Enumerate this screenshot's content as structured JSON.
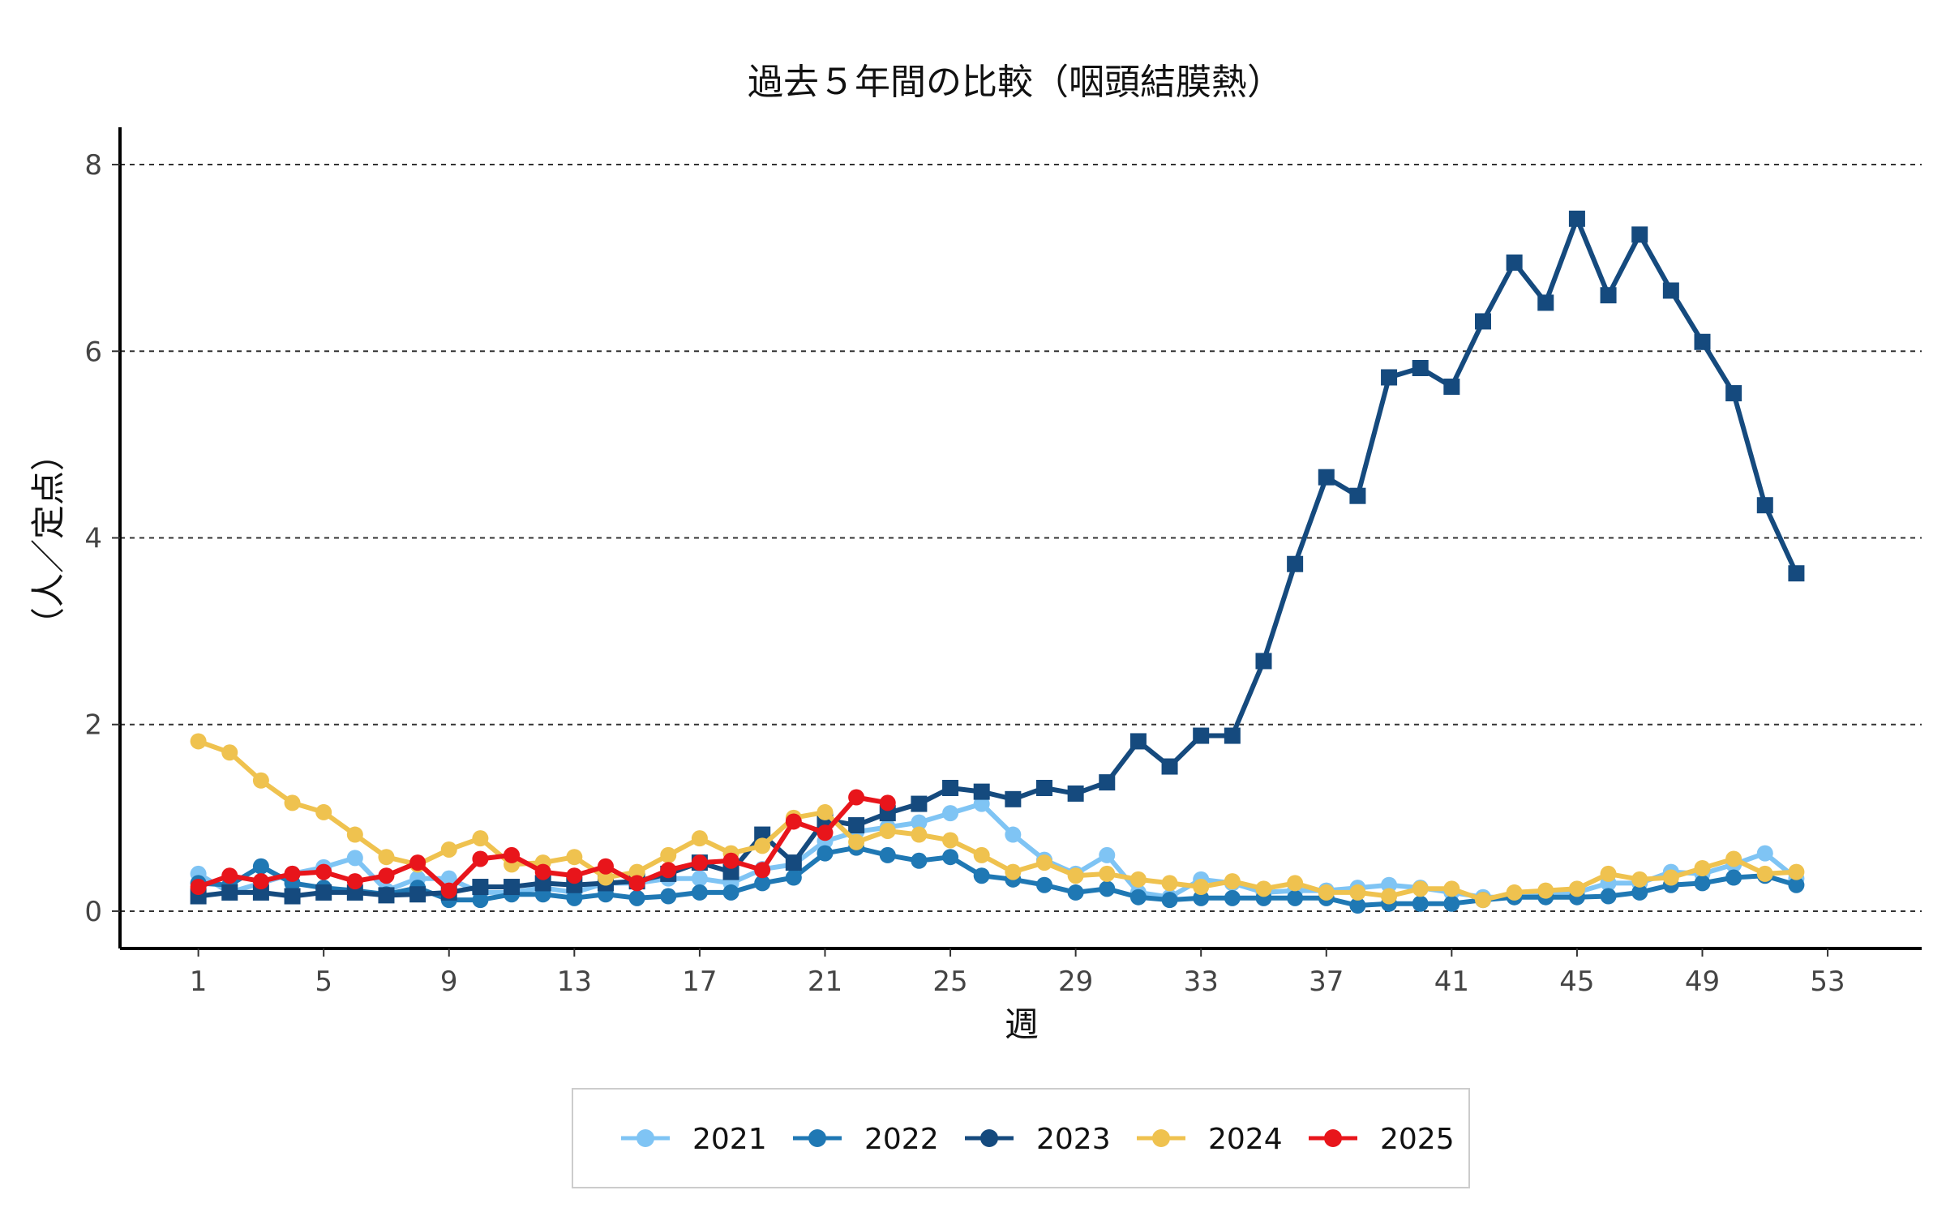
{
  "chart_data": {
    "type": "line",
    "title": "過去５年間の比較（咽頭結膜熱）",
    "xlabel": "週",
    "ylabel": "（人／定点）",
    "xlim": [
      -1.5,
      56
    ],
    "ylim": [
      -0.4,
      8.4
    ],
    "xticks": [
      1,
      5,
      9,
      13,
      17,
      21,
      25,
      29,
      33,
      37,
      41,
      45,
      49,
      53
    ],
    "yticks": [
      0,
      2,
      4,
      6,
      8
    ],
    "grid": "horizontal dashed",
    "legend_position": "bottom",
    "series": [
      {
        "name": "2021",
        "color": "#7fc4f4",
        "marker": "circle",
        "x": [
          1,
          2,
          3,
          4,
          5,
          6,
          7,
          8,
          9,
          10,
          11,
          12,
          13,
          14,
          15,
          16,
          17,
          18,
          19,
          20,
          21,
          22,
          23,
          24,
          25,
          26,
          27,
          28,
          29,
          30,
          31,
          32,
          33,
          34,
          35,
          36,
          37,
          38,
          39,
          40,
          41,
          42,
          43,
          44,
          45,
          46,
          47,
          48,
          49,
          50,
          51,
          52
        ],
        "values": [
          0.4,
          0.2,
          0.3,
          0.4,
          0.47,
          0.57,
          0.22,
          0.35,
          0.35,
          0.2,
          0.2,
          0.25,
          0.2,
          0.3,
          0.3,
          0.35,
          0.35,
          0.3,
          0.45,
          0.5,
          0.75,
          0.85,
          0.9,
          0.95,
          1.05,
          1.15,
          0.82,
          0.55,
          0.4,
          0.6,
          0.2,
          0.15,
          0.34,
          0.3,
          0.2,
          0.22,
          0.22,
          0.25,
          0.28,
          0.25,
          0.2,
          0.15,
          0.15,
          0.2,
          0.2,
          0.3,
          0.3,
          0.42,
          0.4,
          0.5,
          0.62,
          0.35
        ]
      },
      {
        "name": "2022",
        "color": "#1f78b4",
        "marker": "circle",
        "x": [
          1,
          2,
          3,
          4,
          5,
          6,
          7,
          8,
          9,
          10,
          11,
          12,
          13,
          14,
          15,
          16,
          17,
          18,
          19,
          20,
          21,
          22,
          23,
          24,
          25,
          26,
          27,
          28,
          29,
          30,
          31,
          32,
          33,
          34,
          35,
          36,
          37,
          38,
          39,
          40,
          41,
          42,
          43,
          44,
          45,
          46,
          47,
          48,
          49,
          50,
          51,
          52
        ],
        "values": [
          0.3,
          0.28,
          0.48,
          0.3,
          0.25,
          0.22,
          0.18,
          0.25,
          0.12,
          0.12,
          0.18,
          0.18,
          0.14,
          0.18,
          0.14,
          0.16,
          0.2,
          0.2,
          0.3,
          0.36,
          0.62,
          0.68,
          0.6,
          0.54,
          0.58,
          0.38,
          0.34,
          0.28,
          0.2,
          0.24,
          0.15,
          0.12,
          0.14,
          0.14,
          0.14,
          0.14,
          0.14,
          0.06,
          0.08,
          0.08,
          0.08,
          0.12,
          0.15,
          0.15,
          0.15,
          0.16,
          0.2,
          0.28,
          0.3,
          0.36,
          0.38,
          0.28
        ]
      },
      {
        "name": "2023",
        "color": "#154a7e",
        "marker": "square",
        "x": [
          1,
          2,
          3,
          4,
          5,
          6,
          7,
          8,
          9,
          10,
          11,
          12,
          13,
          14,
          15,
          16,
          17,
          18,
          19,
          20,
          21,
          22,
          23,
          24,
          25,
          26,
          27,
          28,
          29,
          30,
          31,
          32,
          33,
          34,
          35,
          36,
          37,
          38,
          39,
          40,
          41,
          42,
          43,
          44,
          45,
          46,
          47,
          48,
          49,
          50,
          51,
          52
        ],
        "values": [
          0.16,
          0.2,
          0.2,
          0.16,
          0.2,
          0.2,
          0.17,
          0.18,
          0.2,
          0.26,
          0.26,
          0.3,
          0.28,
          0.3,
          0.32,
          0.4,
          0.52,
          0.42,
          0.82,
          0.52,
          0.98,
          0.92,
          1.05,
          1.15,
          1.32,
          1.28,
          1.2,
          1.32,
          1.26,
          1.38,
          1.82,
          1.55,
          1.88,
          1.88,
          2.68,
          3.72,
          4.65,
          4.45,
          5.72,
          5.82,
          5.62,
          6.32,
          6.95,
          6.52,
          7.42,
          6.6,
          7.25,
          6.65,
          6.1,
          5.55,
          4.35,
          3.62
        ]
      },
      {
        "name": "2024",
        "color": "#efc24f",
        "marker": "circle",
        "x": [
          1,
          2,
          3,
          4,
          5,
          6,
          7,
          8,
          9,
          10,
          11,
          12,
          13,
          14,
          15,
          16,
          17,
          18,
          19,
          20,
          21,
          22,
          23,
          24,
          25,
          26,
          27,
          28,
          29,
          30,
          31,
          32,
          33,
          34,
          35,
          36,
          37,
          38,
          39,
          40,
          41,
          42,
          43,
          44,
          45,
          46,
          47,
          48,
          49,
          50,
          51,
          52
        ],
        "values": [
          1.82,
          1.7,
          1.4,
          1.16,
          1.06,
          0.82,
          0.58,
          0.5,
          0.66,
          0.78,
          0.5,
          0.52,
          0.58,
          0.36,
          0.42,
          0.6,
          0.78,
          0.62,
          0.7,
          1.0,
          1.06,
          0.74,
          0.86,
          0.82,
          0.76,
          0.6,
          0.42,
          0.52,
          0.38,
          0.4,
          0.34,
          0.3,
          0.26,
          0.32,
          0.24,
          0.3,
          0.2,
          0.2,
          0.16,
          0.24,
          0.24,
          0.12,
          0.2,
          0.22,
          0.24,
          0.4,
          0.34,
          0.36,
          0.46,
          0.56,
          0.4,
          0.42
        ]
      },
      {
        "name": "2025",
        "color": "#e8151b",
        "marker": "circle",
        "x": [
          1,
          2,
          3,
          4,
          5,
          6,
          7,
          8,
          9,
          10,
          11,
          12,
          13,
          14,
          15,
          16,
          17,
          18,
          19,
          20,
          21,
          22,
          23
        ],
        "values": [
          0.26,
          0.38,
          0.32,
          0.4,
          0.42,
          0.32,
          0.38,
          0.52,
          0.22,
          0.56,
          0.6,
          0.42,
          0.38,
          0.48,
          0.3,
          0.44,
          0.52,
          0.54,
          0.44,
          0.96,
          0.84,
          1.22,
          1.16
        ]
      }
    ]
  }
}
